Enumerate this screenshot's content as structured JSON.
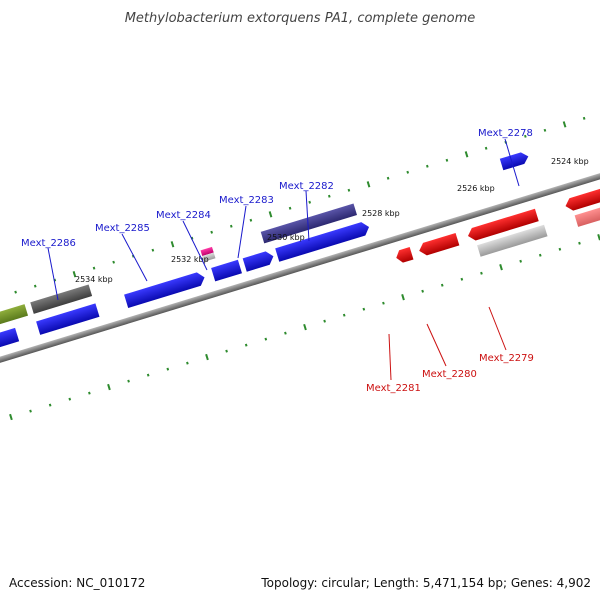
{
  "title": "Methylobacterium extorquens PA1, complete genome",
  "footer": {
    "accession": "Accession: NC_010172",
    "summary": "Topology: circular; Length: 5,471,154 bp; Genes: 4,902"
  },
  "scale_labels": [
    "2524 kbp",
    "2526 kbp",
    "2528 kbp",
    "2530 kbp",
    "2532 kbp",
    "2534 kbp"
  ],
  "gene_labels_forward": [
    "Mext_2278",
    "Mext_2282",
    "Mext_2283",
    "Mext_2284",
    "Mext_2285",
    "Mext_2286"
  ],
  "gene_labels_reverse": [
    "Mext_2279",
    "Mext_2280",
    "Mext_2281"
  ],
  "colors": {
    "forward_label": "#1a1acc",
    "reverse_label": "#cc1111",
    "tick": "#2e8b2e",
    "blue_gene": "#1414e6",
    "red_gene": "#e61414",
    "backbone": "#8c8c8c"
  }
}
